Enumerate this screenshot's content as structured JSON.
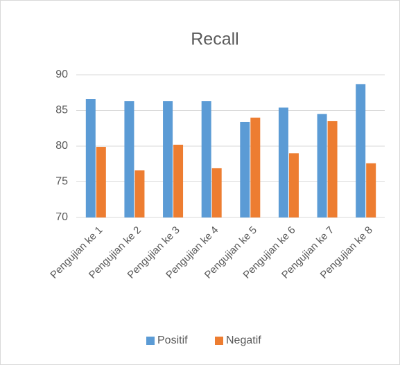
{
  "chart_data": {
    "type": "bar",
    "title": "Recall",
    "categories": [
      "Pengujian ke 1",
      "Pengujian ke 2",
      "Pengujian ke 3",
      "Pengujian ke 4",
      "Pengujian ke 5",
      "Pengujian ke 6",
      "Pengujian ke 7",
      "Pengujian ke 8"
    ],
    "series": [
      {
        "name": "Positif",
        "color": "#5b9bd5",
        "values": [
          86.6,
          86.3,
          86.3,
          86.3,
          83.4,
          85.4,
          84.5,
          88.7
        ]
      },
      {
        "name": "Negatif",
        "color": "#ed7d31",
        "values": [
          79.9,
          76.6,
          80.2,
          76.9,
          84.0,
          79.0,
          83.5,
          77.6
        ]
      }
    ],
    "ylim": [
      70,
      90
    ],
    "yticks": [
      70,
      75,
      80,
      85,
      90
    ],
    "grid": true,
    "legend": "bottom"
  }
}
